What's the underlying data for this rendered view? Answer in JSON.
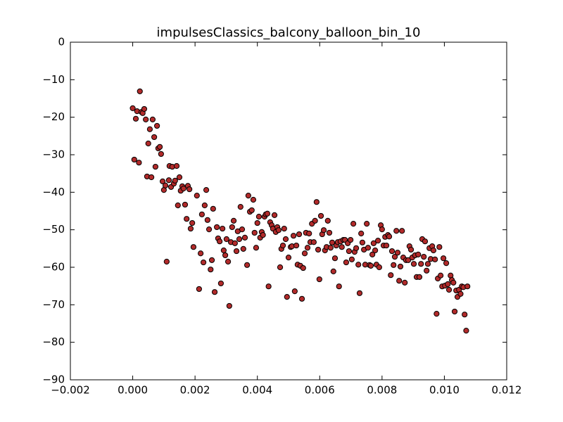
{
  "chart_data": {
    "type": "scatter",
    "title": "impulsesClassics_balcony_balloon_bin_10",
    "color": "#b22a2a",
    "edgecolor": "#000000",
    "xlim": [
      -0.002,
      0.012
    ],
    "xticks": [
      {
        "value": -0.002,
        "label": "−0.002"
      },
      {
        "value": 0,
        "label": "0.000"
      },
      {
        "value": 0.002,
        "label": "0.002"
      },
      {
        "value": 0.004,
        "label": "0.004"
      },
      {
        "value": 0.006,
        "label": "0.006"
      },
      {
        "value": 0.008,
        "label": "0.008"
      },
      {
        "value": 0.01,
        "label": "0.010"
      },
      {
        "value": 0.012,
        "label": "0.012"
      }
    ],
    "ylim": [
      -90,
      0
    ],
    "yticks": [
      {
        "value": -90,
        "label": "−90"
      },
      {
        "value": -80,
        "label": "−80"
      },
      {
        "value": -70,
        "label": "−70"
      },
      {
        "value": -60,
        "label": "−60"
      },
      {
        "value": -50,
        "label": "−50"
      },
      {
        "value": -40,
        "label": "−40"
      },
      {
        "value": -30,
        "label": "−30"
      },
      {
        "value": -20,
        "label": "−20"
      },
      {
        "value": -10,
        "label": "−10"
      },
      0
    ],
    "grid": false,
    "x": [
      0.0,
      5e-05,
      0.0001,
      0.00014,
      0.0002,
      0.00023,
      0.00028,
      0.00032,
      0.00037,
      0.00042,
      0.00046,
      0.0005,
      0.00055,
      0.0006,
      0.00064,
      0.00069,
      0.00073,
      0.00078,
      0.00082,
      0.00087,
      0.00091,
      0.00096,
      0.001,
      0.00105,
      0.00109,
      0.00116,
      0.00118,
      0.00123,
      0.00127,
      0.00132,
      0.00136,
      0.00141,
      0.00145,
      0.0015,
      0.00154,
      0.00159,
      0.00163,
      0.00168,
      0.00173,
      0.00177,
      0.00182,
      0.00186,
      0.00191,
      0.00195,
      0.00206,
      0.00213,
      0.00218,
      0.00222,
      0.00227,
      0.00231,
      0.00236,
      0.0024,
      0.00245,
      0.0025,
      0.00254,
      0.00258,
      0.00263,
      0.0027,
      0.00274,
      0.00279,
      0.00283,
      0.00288,
      0.00292,
      0.00297,
      0.00301,
      0.00306,
      0.0031,
      0.00315,
      0.00319,
      0.00324,
      0.00328,
      0.00333,
      0.00337,
      0.00342,
      0.00346,
      0.00351,
      0.00355,
      0.0036,
      0.00367,
      0.00371,
      0.00376,
      0.00382,
      0.00387,
      0.00391,
      0.00396,
      0.004,
      0.00405,
      0.00409,
      0.00414,
      0.00418,
      0.00423,
      0.00427,
      0.00432,
      0.00436,
      0.00441,
      0.00446,
      0.0045,
      0.00455,
      0.00459,
      0.00464,
      0.00468,
      0.00473,
      0.00477,
      0.00482,
      0.00486,
      0.00491,
      0.00495,
      0.005,
      0.00507,
      0.00511,
      0.00516,
      0.0052,
      0.00525,
      0.00529,
      0.00534,
      0.00538,
      0.00543,
      0.00547,
      0.00552,
      0.00556,
      0.00561,
      0.00566,
      0.0057,
      0.00575,
      0.00581,
      0.00585,
      0.0059,
      0.00595,
      0.00599,
      0.00604,
      0.00608,
      0.00613,
      0.00617,
      0.00622,
      0.00626,
      0.00631,
      0.00635,
      0.0064,
      0.00644,
      0.00649,
      0.00653,
      0.00658,
      0.00662,
      0.00667,
      0.00671,
      0.00676,
      0.00681,
      0.00685,
      0.0069,
      0.00694,
      0.00699,
      0.00703,
      0.00708,
      0.00712,
      0.00717,
      0.00724,
      0.00728,
      0.00733,
      0.00737,
      0.00742,
      0.00746,
      0.00751,
      0.00755,
      0.0076,
      0.00764,
      0.00769,
      0.00773,
      0.00778,
      0.00782,
      0.00787,
      0.00791,
      0.00796,
      0.008,
      0.00805,
      0.0081,
      0.00814,
      0.00819,
      0.00823,
      0.00828,
      0.00832,
      0.00837,
      0.00841,
      0.00846,
      0.0085,
      0.00855,
      0.00859,
      0.00864,
      0.00868,
      0.00873,
      0.00877,
      0.00884,
      0.00888,
      0.00893,
      0.00897,
      0.00902,
      0.00906,
      0.00911,
      0.00916,
      0.0092,
      0.00925,
      0.00929,
      0.00934,
      0.00938,
      0.00943,
      0.00947,
      0.00952,
      0.00956,
      0.00961,
      0.00965,
      0.0097,
      0.00975,
      0.00979,
      0.00984,
      0.00988,
      0.00993,
      0.00997,
      0.01002,
      0.01006,
      0.01011,
      0.01015,
      0.0102,
      0.01024,
      0.01029,
      0.01033,
      0.01038,
      0.01042,
      0.01047,
      0.01052,
      0.01056,
      0.01061,
      0.01065,
      0.0107,
      0.01074
    ],
    "values": [
      -17.6,
      -31.3,
      -20.4,
      -18.4,
      -32.1,
      -13.1,
      -18.6,
      -18.9,
      -17.8,
      -20.6,
      -35.8,
      -27,
      -23.2,
      -36,
      -20.6,
      -25.3,
      -33.2,
      -22.3,
      -28.3,
      -27.9,
      -29.8,
      -37.1,
      -39.4,
      -38.2,
      -58.5,
      -36.8,
      -33,
      -38.6,
      -33.2,
      -37.7,
      -36.9,
      -33,
      -43.5,
      -36,
      -39.6,
      -38.4,
      -39,
      -43.3,
      -47.1,
      -38.3,
      -39.2,
      -49.7,
      -48.2,
      -54.6,
      -40.9,
      -65.8,
      -56.3,
      -45.9,
      -58.7,
      -43.5,
      -39.4,
      -47.4,
      -49.9,
      -60.6,
      -58.1,
      -44.4,
      -66.6,
      -49.3,
      -52.3,
      -53.1,
      -64.3,
      -49.7,
      -55.5,
      -56.8,
      -52.5,
      -58.5,
      -70.3,
      -53.3,
      -49.3,
      -47.6,
      -53.6,
      -55.7,
      -50.4,
      -52.5,
      -43.9,
      -49.9,
      -55.1,
      -52.1,
      -59.4,
      -40.9,
      -45.2,
      -44.8,
      -42,
      -50.8,
      -54.8,
      -48.2,
      -46.5,
      -52.1,
      -50.6,
      -51.4,
      -46.5,
      -45.9,
      -45.7,
      -65.1,
      -48,
      -48.8,
      -49.7,
      -46.1,
      -50.6,
      -49.3,
      -50.1,
      -60,
      -55.1,
      -54.2,
      -49.7,
      -52.5,
      -67.9,
      -57.4,
      -54.6,
      -54.4,
      -51.6,
      -66.4,
      -54.2,
      -59.3,
      -51.2,
      -59.6,
      -68.4,
      -60.2,
      -56.3,
      -50.8,
      -54.8,
      -51,
      -53.3,
      -48.4,
      -53.3,
      -47.6,
      -42.6,
      -55.3,
      -63.2,
      -46.3,
      -51.2,
      -50.1,
      -55.5,
      -54.6,
      -47.6,
      -50.8,
      -54.8,
      -53.4,
      -61.1,
      -57.6,
      -54.2,
      -53.3,
      -65.1,
      -53.1,
      -54.6,
      -52.7,
      -52.7,
      -58.7,
      -53.6,
      -55.7,
      -52.7,
      -57.9,
      -48.4,
      -55.9,
      -54.9,
      -59.3,
      -66.9,
      -51,
      -53.4,
      -55.3,
      -59.3,
      -48.4,
      -54.8,
      -59.4,
      -59.6,
      -56.6,
      -53.6,
      -55.5,
      -59.3,
      -52.9,
      -60,
      -48.8,
      -49.9,
      -54.2,
      -51.9,
      -54.2,
      -51.4,
      -51.8,
      -62.1,
      -55.7,
      -59.4,
      -57.2,
      -50.3,
      -56.1,
      -63.6,
      -59.8,
      -50.3,
      -57.4,
      -64.1,
      -58.1,
      -58.1,
      -54.4,
      -55.3,
      -57.4,
      -59.1,
      -56.8,
      -62.6,
      -56.6,
      -62.6,
      -59.1,
      -52.5,
      -57.2,
      -53.1,
      -60.9,
      -59.1,
      -54.9,
      -57.8,
      -54.4,
      -55.5,
      -57.9,
      -72.4,
      -63,
      -54.6,
      -62.2,
      -65.1,
      -57.6,
      -64.9,
      -58.9,
      -64.5,
      -66,
      -62.2,
      -63.4,
      -64.1,
      -71.8,
      -66.2,
      -67.9,
      -66,
      -67.1,
      -65.1,
      -65.3,
      -72.6,
      -76.9,
      -65.1
    ]
  }
}
